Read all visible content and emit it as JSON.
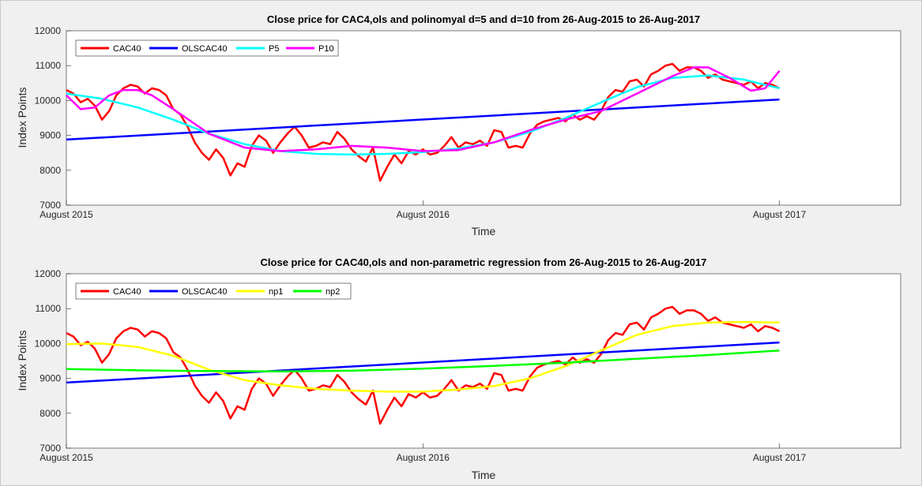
{
  "colors": {
    "cac40": "#ff0000",
    "ols": "#0000ff",
    "p5": "#00ffff",
    "p10": "#ff00ff",
    "np1": "#ffff00",
    "np2": "#00ff00"
  },
  "chart_data": [
    {
      "type": "line",
      "title": "Close price for CAC4,ols and polinomyal d=5 and d=10 from 26-Aug-2015 to 26-Aug-2017",
      "xlabel": "Time",
      "ylabel": "Index Points",
      "ylim": [
        7000,
        12000
      ],
      "xlim": [
        0,
        1.17
      ],
      "yticks": [
        "7000",
        "8000",
        "9000",
        "10000",
        "11000",
        "12000"
      ],
      "xticks": [
        {
          "x": 0,
          "label": "August 2015"
        },
        {
          "x": 0.5,
          "label": "August 2016"
        },
        {
          "x": 1.0,
          "label": "August 2017"
        }
      ],
      "grid": false,
      "legend_position": "top-left (horizontal)",
      "series": [
        {
          "name": "CAC40",
          "color": "#ff0000",
          "x": [
            0,
            0.01,
            0.02,
            0.03,
            0.04,
            0.05,
            0.06,
            0.07,
            0.08,
            0.09,
            0.1,
            0.11,
            0.12,
            0.13,
            0.14,
            0.15,
            0.16,
            0.17,
            0.18,
            0.19,
            0.2,
            0.21,
            0.22,
            0.23,
            0.24,
            0.25,
            0.26,
            0.27,
            0.28,
            0.29,
            0.3,
            0.31,
            0.32,
            0.33,
            0.34,
            0.35,
            0.36,
            0.37,
            0.38,
            0.39,
            0.4,
            0.41,
            0.42,
            0.43,
            0.44,
            0.45,
            0.46,
            0.47,
            0.48,
            0.49,
            0.5,
            0.51,
            0.52,
            0.53,
            0.54,
            0.55,
            0.56,
            0.57,
            0.58,
            0.59,
            0.6,
            0.61,
            0.62,
            0.63,
            0.64,
            0.65,
            0.66,
            0.67,
            0.68,
            0.69,
            0.7,
            0.71,
            0.72,
            0.73,
            0.74,
            0.75,
            0.76,
            0.77,
            0.78,
            0.79,
            0.8,
            0.81,
            0.82,
            0.83,
            0.84,
            0.85,
            0.86,
            0.87,
            0.88,
            0.89,
            0.9,
            0.91,
            0.92,
            0.93,
            0.94,
            0.95,
            0.96,
            0.97,
            0.98,
            0.99,
            1.0
          ],
          "values": [
            10300,
            10200,
            9950,
            10050,
            9850,
            9450,
            9700,
            10150,
            10350,
            10450,
            10400,
            10200,
            10350,
            10300,
            10150,
            9750,
            9600,
            9250,
            8800,
            8500,
            8300,
            8600,
            8350,
            7850,
            8200,
            8100,
            8700,
            9000,
            8850,
            8500,
            8800,
            9050,
            9250,
            9000,
            8650,
            8700,
            8800,
            8750,
            9100,
            8900,
            8600,
            8400,
            8250,
            8650,
            7700,
            8100,
            8450,
            8200,
            8550,
            8450,
            8600,
            8450,
            8500,
            8700,
            8950,
            8650,
            8800,
            8750,
            8850,
            8700,
            9150,
            9100,
            8650,
            8700,
            8650,
            9050,
            9300,
            9400,
            9450,
            9500,
            9400,
            9600,
            9450,
            9550,
            9450,
            9700,
            10100,
            10300,
            10250,
            10550,
            10600,
            10400,
            10750,
            10850,
            11000,
            11050,
            10850,
            10950,
            10950,
            10850,
            10650,
            10750,
            10600,
            10550,
            10500,
            10450,
            10550,
            10350,
            10500,
            10450,
            10350
          ]
        },
        {
          "name": "OLSCAC40",
          "color": "#0000ff",
          "x": [
            0,
            1.0
          ],
          "values": [
            8880,
            10030
          ]
        },
        {
          "name": "P5",
          "color": "#00ffff",
          "x": [
            0,
            0.05,
            0.1,
            0.15,
            0.2,
            0.25,
            0.3,
            0.35,
            0.4,
            0.45,
            0.5,
            0.55,
            0.6,
            0.65,
            0.7,
            0.75,
            0.8,
            0.85,
            0.9,
            0.95,
            1.0
          ],
          "values": [
            10200,
            10050,
            9800,
            9450,
            9050,
            8750,
            8550,
            8470,
            8450,
            8470,
            8520,
            8620,
            8800,
            9100,
            9500,
            9950,
            10380,
            10650,
            10720,
            10600,
            10350
          ]
        },
        {
          "name": "P10",
          "color": "#ff00ff",
          "x": [
            0,
            0.02,
            0.04,
            0.06,
            0.08,
            0.1,
            0.12,
            0.15,
            0.2,
            0.25,
            0.3,
            0.35,
            0.4,
            0.45,
            0.5,
            0.55,
            0.6,
            0.65,
            0.7,
            0.75,
            0.8,
            0.85,
            0.88,
            0.9,
            0.93,
            0.96,
            0.98,
            1.0
          ],
          "values": [
            10150,
            9750,
            9800,
            10150,
            10300,
            10300,
            10150,
            9750,
            9050,
            8650,
            8550,
            8600,
            8700,
            8650,
            8550,
            8580,
            8800,
            9150,
            9450,
            9700,
            10200,
            10700,
            10950,
            10950,
            10650,
            10280,
            10350,
            10850
          ]
        }
      ]
    },
    {
      "type": "line",
      "title": "Close price for CAC40,ols and non-parametric regression from 26-Aug-2015 to 26-Aug-2017",
      "xlabel": "Time",
      "ylabel": "Index Points",
      "ylim": [
        7000,
        12000
      ],
      "xlim": [
        0,
        1.17
      ],
      "yticks": [
        "7000",
        "8000",
        "9000",
        "10000",
        "11000",
        "12000"
      ],
      "xticks": [
        {
          "x": 0,
          "label": "August 2015"
        },
        {
          "x": 0.5,
          "label": "August 2016"
        },
        {
          "x": 1.0,
          "label": "August 2017"
        }
      ],
      "grid": false,
      "legend_position": "top-left (horizontal)",
      "series": [
        {
          "name": "CAC40",
          "color": "#ff0000",
          "x": [
            0,
            0.01,
            0.02,
            0.03,
            0.04,
            0.05,
            0.06,
            0.07,
            0.08,
            0.09,
            0.1,
            0.11,
            0.12,
            0.13,
            0.14,
            0.15,
            0.16,
            0.17,
            0.18,
            0.19,
            0.2,
            0.21,
            0.22,
            0.23,
            0.24,
            0.25,
            0.26,
            0.27,
            0.28,
            0.29,
            0.3,
            0.31,
            0.32,
            0.33,
            0.34,
            0.35,
            0.36,
            0.37,
            0.38,
            0.39,
            0.4,
            0.41,
            0.42,
            0.43,
            0.44,
            0.45,
            0.46,
            0.47,
            0.48,
            0.49,
            0.5,
            0.51,
            0.52,
            0.53,
            0.54,
            0.55,
            0.56,
            0.57,
            0.58,
            0.59,
            0.6,
            0.61,
            0.62,
            0.63,
            0.64,
            0.65,
            0.66,
            0.67,
            0.68,
            0.69,
            0.7,
            0.71,
            0.72,
            0.73,
            0.74,
            0.75,
            0.76,
            0.77,
            0.78,
            0.79,
            0.8,
            0.81,
            0.82,
            0.83,
            0.84,
            0.85,
            0.86,
            0.87,
            0.88,
            0.89,
            0.9,
            0.91,
            0.92,
            0.93,
            0.94,
            0.95,
            0.96,
            0.97,
            0.98,
            0.99,
            1.0
          ],
          "values": [
            10300,
            10200,
            9950,
            10050,
            9850,
            9450,
            9700,
            10150,
            10350,
            10450,
            10400,
            10200,
            10350,
            10300,
            10150,
            9750,
            9600,
            9250,
            8800,
            8500,
            8300,
            8600,
            8350,
            7850,
            8200,
            8100,
            8700,
            9000,
            8850,
            8500,
            8800,
            9050,
            9250,
            9000,
            8650,
            8700,
            8800,
            8750,
            9100,
            8900,
            8600,
            8400,
            8250,
            8650,
            7700,
            8100,
            8450,
            8200,
            8550,
            8450,
            8600,
            8450,
            8500,
            8700,
            8950,
            8650,
            8800,
            8750,
            8850,
            8700,
            9150,
            9100,
            8650,
            8700,
            8650,
            9050,
            9300,
            9400,
            9450,
            9500,
            9400,
            9600,
            9450,
            9550,
            9450,
            9700,
            10100,
            10300,
            10250,
            10550,
            10600,
            10400,
            10750,
            10850,
            11000,
            11050,
            10850,
            10950,
            10950,
            10850,
            10650,
            10750,
            10600,
            10550,
            10500,
            10450,
            10550,
            10350,
            10500,
            10450,
            10350
          ]
        },
        {
          "name": "OLSCAC40",
          "color": "#0000ff",
          "x": [
            0,
            1.0
          ],
          "values": [
            8880,
            10030
          ]
        },
        {
          "name": "np1",
          "color": "#ffff00",
          "x": [
            0,
            0.05,
            0.1,
            0.15,
            0.2,
            0.25,
            0.3,
            0.35,
            0.4,
            0.45,
            0.5,
            0.55,
            0.6,
            0.65,
            0.7,
            0.75,
            0.8,
            0.85,
            0.9,
            0.95,
            1.0
          ],
          "values": [
            9980,
            10000,
            9900,
            9650,
            9250,
            8950,
            8800,
            8700,
            8650,
            8620,
            8620,
            8680,
            8780,
            9000,
            9350,
            9800,
            10250,
            10500,
            10600,
            10620,
            10600
          ]
        },
        {
          "name": "np2",
          "color": "#00ff00",
          "x": [
            0,
            0.1,
            0.2,
            0.3,
            0.4,
            0.5,
            0.6,
            0.7,
            0.8,
            0.9,
            1.0
          ],
          "values": [
            9270,
            9230,
            9210,
            9200,
            9220,
            9280,
            9360,
            9450,
            9560,
            9670,
            9800
          ]
        }
      ]
    }
  ]
}
